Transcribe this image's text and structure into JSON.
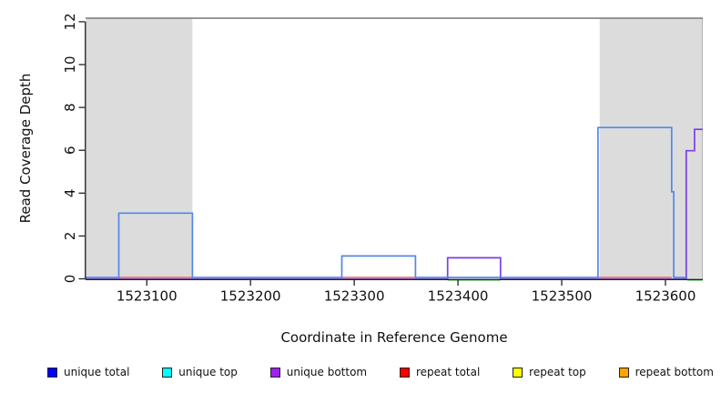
{
  "figure": {
    "xlabel": "Coordinate in Reference Genome",
    "ylabel": "Read Coverage Depth"
  },
  "chart_data": {
    "type": "line",
    "subtype": "step-coverage-plot",
    "title": "",
    "xlabel": "Coordinate in Reference Genome",
    "ylabel": "Read Coverage Depth",
    "xlim": [
      1523041,
      1523636
    ],
    "ylim": [
      0,
      12
    ],
    "x_ticks": [
      1523100,
      1523200,
      1523300,
      1523400,
      1523500,
      1523600
    ],
    "y_ticks": [
      0,
      2,
      4,
      6,
      8,
      10,
      12
    ],
    "grid": false,
    "band_color": "#dcdcdc",
    "top_border_color": "#8a8a8a",
    "shaded_regions": [
      {
        "start": 1523041,
        "end": 1523144
      },
      {
        "start": 1523536,
        "end": 1523636
      }
    ],
    "series": [
      {
        "name": "unique total",
        "line_color": "#5387e8",
        "steps": [
          [
            1523041,
            0
          ],
          [
            1523073,
            3
          ],
          [
            1523144,
            0
          ],
          [
            1523288,
            1
          ],
          [
            1523359,
            0
          ],
          [
            1523535,
            7
          ],
          [
            1523606,
            4
          ],
          [
            1523608,
            0
          ]
        ],
        "end": 1523621
      },
      {
        "name": "unique bottom",
        "line_color": "#7b3fe4",
        "steps": [
          [
            1523041,
            0
          ],
          [
            1523390,
            1
          ],
          [
            1523441,
            0
          ],
          [
            1523620,
            6
          ],
          [
            1523628,
            7
          ]
        ],
        "end": 1523636
      },
      {
        "name": "repeat total",
        "line_color": "#e8707e",
        "value": 0,
        "segments": [
          [
            1523073,
            1523144
          ],
          [
            1523288,
            1523359
          ],
          [
            1523535,
            1523606
          ]
        ]
      },
      {
        "name": "unique top / repeat top overlap",
        "line_color": "#90db90",
        "value": 0,
        "segments": [
          [
            1523390,
            1523441
          ],
          [
            1523621,
            1523636
          ]
        ]
      }
    ],
    "legend_position": "bottom",
    "legend_entries": [
      {
        "label": "unique total",
        "color": "#0000ff"
      },
      {
        "label": "unique top",
        "color": "#00ffff"
      },
      {
        "label": "unique bottom",
        "color": "#a020f0"
      },
      {
        "label": "repeat total",
        "color": "#ff0000"
      },
      {
        "label": "repeat top",
        "color": "#ffff00"
      },
      {
        "label": "repeat bottom",
        "color": "#ffa500"
      }
    ]
  }
}
